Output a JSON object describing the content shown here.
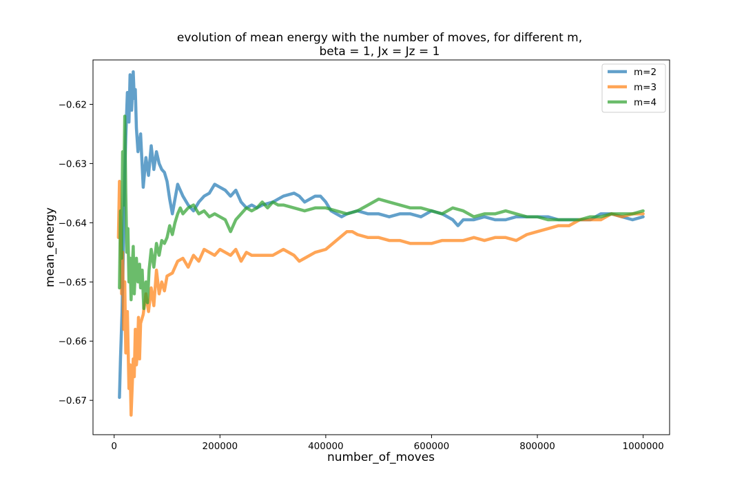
{
  "chart_data": {
    "type": "line",
    "title": "evolution of mean energy with the number of moves, for different m,",
    "subtitle": "beta = 1, Jx = Jz = 1",
    "xlabel": "number_of_moves",
    "ylabel": "mean_energy",
    "xlim": [
      -40000,
      1050000
    ],
    "ylim": [
      -0.6758,
      -0.6125
    ],
    "xticks": [
      0,
      200000,
      400000,
      600000,
      800000,
      1000000
    ],
    "xtick_labels": [
      "0",
      "200000",
      "400000",
      "600000",
      "800000",
      "1000000"
    ],
    "yticks": [
      -0.67,
      -0.66,
      -0.65,
      -0.64,
      -0.63,
      -0.62
    ],
    "ytick_labels": [
      "−0.67",
      "−0.66",
      "−0.65",
      "−0.64",
      "−0.63",
      "−0.62"
    ],
    "grid": false,
    "legend": "top-right",
    "series": [
      {
        "name": "m=2",
        "color": "#1f77b4",
        "x": [
          10000,
          12000,
          15000,
          18000,
          20000,
          22000,
          25000,
          28000,
          30000,
          33000,
          36000,
          38000,
          40000,
          42000,
          45000,
          50000,
          55000,
          60000,
          65000,
          70000,
          75000,
          80000,
          85000,
          90000,
          95000,
          100000,
          105000,
          110000,
          115000,
          120000,
          125000,
          130000,
          140000,
          150000,
          160000,
          170000,
          180000,
          190000,
          200000,
          210000,
          220000,
          230000,
          240000,
          250000,
          260000,
          270000,
          280000,
          300000,
          320000,
          340000,
          350000,
          360000,
          370000,
          380000,
          390000,
          400000,
          410000,
          420000,
          430000,
          440000,
          460000,
          480000,
          500000,
          520000,
          540000,
          560000,
          580000,
          600000,
          620000,
          640000,
          650000,
          660000,
          680000,
          700000,
          720000,
          740000,
          760000,
          780000,
          800000,
          820000,
          840000,
          860000,
          880000,
          900000,
          920000,
          940000,
          960000,
          980000,
          1000000
        ],
        "y": [
          -0.6695,
          -0.663,
          -0.655,
          -0.642,
          -0.632,
          -0.6255,
          -0.618,
          -0.623,
          -0.615,
          -0.621,
          -0.6145,
          -0.619,
          -0.6175,
          -0.624,
          -0.628,
          -0.625,
          -0.634,
          -0.629,
          -0.632,
          -0.627,
          -0.631,
          -0.628,
          -0.63,
          -0.631,
          -0.6315,
          -0.633,
          -0.636,
          -0.6385,
          -0.636,
          -0.6335,
          -0.6345,
          -0.6355,
          -0.637,
          -0.638,
          -0.6365,
          -0.6355,
          -0.635,
          -0.6335,
          -0.634,
          -0.6345,
          -0.6355,
          -0.6345,
          -0.6365,
          -0.6375,
          -0.637,
          -0.6375,
          -0.637,
          -0.6365,
          -0.6355,
          -0.635,
          -0.6355,
          -0.6365,
          -0.636,
          -0.6355,
          -0.6355,
          -0.6365,
          -0.638,
          -0.6385,
          -0.639,
          -0.6385,
          -0.638,
          -0.6385,
          -0.6385,
          -0.639,
          -0.6385,
          -0.6385,
          -0.639,
          -0.638,
          -0.6385,
          -0.6395,
          -0.6405,
          -0.6395,
          -0.6395,
          -0.639,
          -0.6395,
          -0.6395,
          -0.639,
          -0.639,
          -0.639,
          -0.639,
          -0.6395,
          -0.6395,
          -0.6395,
          -0.6395,
          -0.6385,
          -0.6385,
          -0.639,
          -0.6395,
          -0.639
        ]
      },
      {
        "name": "m=3",
        "color": "#ff7f0e",
        "x": [
          8000,
          10000,
          12000,
          14000,
          16000,
          18000,
          20000,
          22000,
          25000,
          28000,
          30000,
          32000,
          34000,
          36000,
          38000,
          40000,
          42000,
          44000,
          46000,
          48000,
          50000,
          55000,
          60000,
          65000,
          70000,
          75000,
          80000,
          85000,
          90000,
          95000,
          100000,
          110000,
          120000,
          130000,
          140000,
          150000,
          160000,
          170000,
          180000,
          190000,
          200000,
          210000,
          220000,
          230000,
          240000,
          250000,
          260000,
          280000,
          300000,
          320000,
          340000,
          350000,
          360000,
          380000,
          400000,
          420000,
          440000,
          450000,
          460000,
          480000,
          500000,
          520000,
          540000,
          560000,
          580000,
          600000,
          620000,
          640000,
          660000,
          680000,
          700000,
          720000,
          740000,
          760000,
          780000,
          800000,
          820000,
          840000,
          860000,
          880000,
          900000,
          920000,
          940000,
          960000,
          980000,
          1000000
        ],
        "y": [
          -0.6425,
          -0.633,
          -0.64,
          -0.652,
          -0.645,
          -0.658,
          -0.65,
          -0.662,
          -0.655,
          -0.668,
          -0.664,
          -0.6725,
          -0.668,
          -0.663,
          -0.666,
          -0.658,
          -0.664,
          -0.662,
          -0.656,
          -0.663,
          -0.657,
          -0.6555,
          -0.652,
          -0.655,
          -0.651,
          -0.654,
          -0.648,
          -0.652,
          -0.65,
          -0.6515,
          -0.649,
          -0.6485,
          -0.6465,
          -0.646,
          -0.6475,
          -0.6455,
          -0.6465,
          -0.6445,
          -0.645,
          -0.6455,
          -0.6445,
          -0.645,
          -0.6455,
          -0.6445,
          -0.6465,
          -0.645,
          -0.6455,
          -0.6455,
          -0.6455,
          -0.6445,
          -0.6455,
          -0.6465,
          -0.646,
          -0.645,
          -0.6445,
          -0.643,
          -0.6415,
          -0.6415,
          -0.642,
          -0.6425,
          -0.6425,
          -0.643,
          -0.643,
          -0.6435,
          -0.6435,
          -0.6435,
          -0.643,
          -0.643,
          -0.643,
          -0.6425,
          -0.643,
          -0.6425,
          -0.6425,
          -0.643,
          -0.642,
          -0.6415,
          -0.641,
          -0.6405,
          -0.6405,
          -0.6395,
          -0.6395,
          -0.6395,
          -0.6385,
          -0.639,
          -0.6385,
          -0.6385
        ]
      },
      {
        "name": "m=4",
        "color": "#2ca02c",
        "x": [
          10000,
          12000,
          14000,
          16000,
          18000,
          20000,
          22000,
          24000,
          26000,
          28000,
          30000,
          32000,
          34000,
          36000,
          38000,
          40000,
          42000,
          45000,
          48000,
          50000,
          53000,
          56000,
          60000,
          63000,
          66000,
          70000,
          75000,
          80000,
          85000,
          90000,
          95000,
          100000,
          105000,
          110000,
          115000,
          120000,
          125000,
          130000,
          140000,
          150000,
          160000,
          170000,
          180000,
          190000,
          200000,
          210000,
          220000,
          230000,
          240000,
          250000,
          260000,
          270000,
          280000,
          290000,
          300000,
          310000,
          320000,
          340000,
          360000,
          380000,
          400000,
          420000,
          440000,
          460000,
          480000,
          500000,
          520000,
          540000,
          560000,
          580000,
          600000,
          620000,
          640000,
          660000,
          680000,
          700000,
          720000,
          740000,
          760000,
          780000,
          800000,
          820000,
          840000,
          860000,
          880000,
          900000,
          920000,
          940000,
          960000,
          980000,
          1000000
        ],
        "y": [
          -0.651,
          -0.638,
          -0.646,
          -0.628,
          -0.637,
          -0.622,
          -0.635,
          -0.645,
          -0.641,
          -0.65,
          -0.646,
          -0.653,
          -0.648,
          -0.644,
          -0.652,
          -0.648,
          -0.646,
          -0.65,
          -0.647,
          -0.651,
          -0.648,
          -0.6545,
          -0.65,
          -0.6535,
          -0.648,
          -0.6445,
          -0.6475,
          -0.6435,
          -0.6455,
          -0.643,
          -0.6435,
          -0.6425,
          -0.6405,
          -0.642,
          -0.64,
          -0.6385,
          -0.6375,
          -0.6385,
          -0.6375,
          -0.637,
          -0.6385,
          -0.638,
          -0.639,
          -0.6385,
          -0.639,
          -0.6395,
          -0.6415,
          -0.6395,
          -0.6385,
          -0.6375,
          -0.638,
          -0.6375,
          -0.6365,
          -0.6375,
          -0.6365,
          -0.637,
          -0.637,
          -0.6375,
          -0.638,
          -0.6375,
          -0.6375,
          -0.638,
          -0.6385,
          -0.638,
          -0.637,
          -0.636,
          -0.6365,
          -0.637,
          -0.6375,
          -0.6375,
          -0.638,
          -0.6385,
          -0.6375,
          -0.638,
          -0.639,
          -0.6385,
          -0.6385,
          -0.638,
          -0.6385,
          -0.639,
          -0.639,
          -0.6395,
          -0.6395,
          -0.6395,
          -0.6395,
          -0.639,
          -0.639,
          -0.6385,
          -0.6385,
          -0.6385,
          -0.638
        ]
      }
    ]
  }
}
